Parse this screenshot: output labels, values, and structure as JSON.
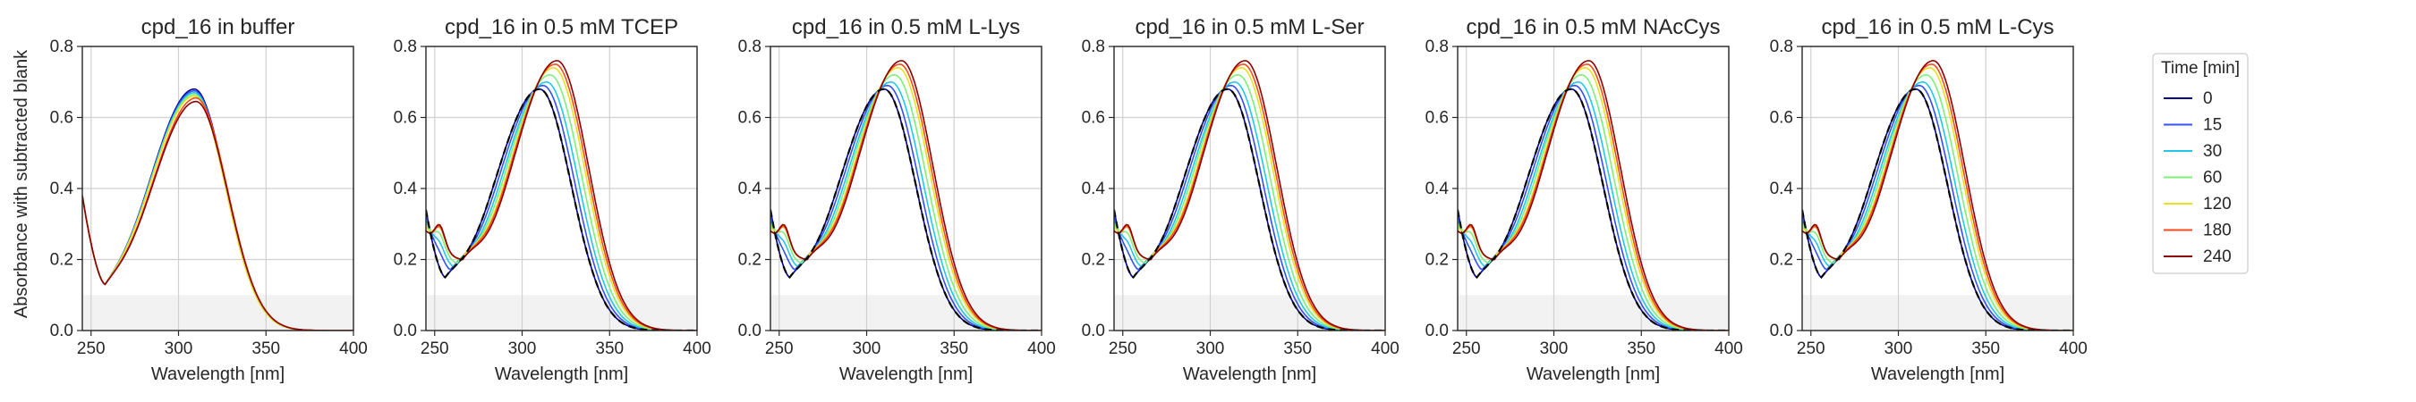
{
  "figure": {
    "y_axis_label": "Absorbance with subtracted blank",
    "x_axis_label": "Wavelength [nm]",
    "background_band": {
      "y_from": 0.0,
      "y_to": 0.1,
      "color": "#f2f2f2"
    },
    "colors": {
      "axes": "#262626",
      "grid": "#d0d0d0",
      "reference_curve": "#000000"
    }
  },
  "legend": {
    "title": "Time [min]",
    "placement": "right",
    "entries": [
      {
        "label": "0",
        "color": "#00008b"
      },
      {
        "label": "15",
        "color": "#3350ff"
      },
      {
        "label": "30",
        "color": "#20c8e8"
      },
      {
        "label": "60",
        "color": "#7cf07c"
      },
      {
        "label": "120",
        "color": "#e8e020"
      },
      {
        "label": "180",
        "color": "#ff4a1a"
      },
      {
        "label": "240",
        "color": "#8b0000"
      }
    ]
  },
  "chart_data": [
    {
      "type": "line",
      "title": "cpd_16 in buffer",
      "xlabel": "Wavelength [nm]",
      "ylabel": "Absorbance with subtracted blank",
      "xlim": [
        245,
        400
      ],
      "ylim": [
        0,
        0.8
      ],
      "xticks": [
        "250",
        "300",
        "350",
        "400"
      ],
      "yticks": [
        "0.0",
        "0.2",
        "0.4",
        "0.6",
        "0.8"
      ],
      "grid": true,
      "reference_baseline": false,
      "series": [
        {
          "name": "0",
          "model": {
            "min_wl": 258,
            "min_val": 0.13,
            "short_end": 0.38,
            "bump": 0.0,
            "peak_wl": 309,
            "peak_val": 0.68
          }
        },
        {
          "name": "15",
          "model": {
            "min_wl": 258,
            "min_val": 0.13,
            "short_end": 0.38,
            "bump": 0.0,
            "peak_wl": 309,
            "peak_val": 0.675
          }
        },
        {
          "name": "30",
          "model": {
            "min_wl": 258,
            "min_val": 0.13,
            "short_end": 0.38,
            "bump": 0.0,
            "peak_wl": 309,
            "peak_val": 0.67
          }
        },
        {
          "name": "60",
          "model": {
            "min_wl": 258,
            "min_val": 0.13,
            "short_end": 0.38,
            "bump": 0.0,
            "peak_wl": 309,
            "peak_val": 0.665
          }
        },
        {
          "name": "120",
          "model": {
            "min_wl": 258,
            "min_val": 0.13,
            "short_end": 0.38,
            "bump": 0.0,
            "peak_wl": 309,
            "peak_val": 0.66
          }
        },
        {
          "name": "180",
          "model": {
            "min_wl": 258,
            "min_val": 0.13,
            "short_end": 0.38,
            "bump": 0.0,
            "peak_wl": 310,
            "peak_val": 0.655
          }
        },
        {
          "name": "240",
          "model": {
            "min_wl": 258,
            "min_val": 0.13,
            "short_end": 0.38,
            "bump": 0.0,
            "peak_wl": 310,
            "peak_val": 0.645
          }
        }
      ]
    },
    {
      "type": "line",
      "title": "cpd_16 in 0.5 mM TCEP",
      "xlabel": "Wavelength [nm]",
      "ylabel": "Absorbance with subtracted blank",
      "xlim": [
        245,
        400
      ],
      "ylim": [
        0,
        0.8
      ],
      "xticks": [
        "250",
        "300",
        "350",
        "400"
      ],
      "yticks": [
        "0.0",
        "0.2",
        "0.4",
        "0.6",
        "0.8"
      ],
      "grid": true,
      "reference_baseline": true,
      "series": [
        {
          "name": "0",
          "model": {
            "min_wl": 256,
            "min_val": 0.15,
            "short_end": 0.34,
            "bump": 0.0,
            "peak_wl": 310,
            "peak_val": 0.68
          }
        },
        {
          "name": "15",
          "model": {
            "min_wl": 259,
            "min_val": 0.17,
            "short_end": 0.32,
            "bump": 0.012,
            "peak_wl": 312,
            "peak_val": 0.69
          }
        },
        {
          "name": "30",
          "model": {
            "min_wl": 261,
            "min_val": 0.18,
            "short_end": 0.31,
            "bump": 0.025,
            "peak_wl": 314,
            "peak_val": 0.7
          }
        },
        {
          "name": "60",
          "model": {
            "min_wl": 263,
            "min_val": 0.19,
            "short_end": 0.3,
            "bump": 0.04,
            "peak_wl": 316,
            "peak_val": 0.72
          }
        },
        {
          "name": "120",
          "model": {
            "min_wl": 265,
            "min_val": 0.2,
            "short_end": 0.29,
            "bump": 0.05,
            "peak_wl": 318,
            "peak_val": 0.74
          }
        },
        {
          "name": "180",
          "model": {
            "min_wl": 266,
            "min_val": 0.2,
            "short_end": 0.28,
            "bump": 0.055,
            "peak_wl": 319,
            "peak_val": 0.75
          }
        },
        {
          "name": "240",
          "model": {
            "min_wl": 266,
            "min_val": 0.2,
            "short_end": 0.28,
            "bump": 0.06,
            "peak_wl": 320,
            "peak_val": 0.76
          }
        }
      ]
    },
    {
      "type": "line",
      "title": "cpd_16 in 0.5 mM L-Lys",
      "xlabel": "Wavelength [nm]",
      "ylabel": "Absorbance with subtracted blank",
      "xlim": [
        245,
        400
      ],
      "ylim": [
        0,
        0.8
      ],
      "xticks": [
        "250",
        "300",
        "350",
        "400"
      ],
      "yticks": [
        "0.0",
        "0.2",
        "0.4",
        "0.6",
        "0.8"
      ],
      "grid": true,
      "reference_baseline": true,
      "series": [
        {
          "name": "0",
          "model": {
            "min_wl": 256,
            "min_val": 0.15,
            "short_end": 0.34,
            "bump": 0.0,
            "peak_wl": 310,
            "peak_val": 0.68
          }
        },
        {
          "name": "15",
          "model": {
            "min_wl": 259,
            "min_val": 0.17,
            "short_end": 0.32,
            "bump": 0.012,
            "peak_wl": 312,
            "peak_val": 0.69
          }
        },
        {
          "name": "30",
          "model": {
            "min_wl": 261,
            "min_val": 0.18,
            "short_end": 0.31,
            "bump": 0.025,
            "peak_wl": 314,
            "peak_val": 0.7
          }
        },
        {
          "name": "60",
          "model": {
            "min_wl": 263,
            "min_val": 0.19,
            "short_end": 0.3,
            "bump": 0.04,
            "peak_wl": 316,
            "peak_val": 0.72
          }
        },
        {
          "name": "120",
          "model": {
            "min_wl": 265,
            "min_val": 0.2,
            "short_end": 0.29,
            "bump": 0.05,
            "peak_wl": 318,
            "peak_val": 0.74
          }
        },
        {
          "name": "180",
          "model": {
            "min_wl": 266,
            "min_val": 0.2,
            "short_end": 0.28,
            "bump": 0.055,
            "peak_wl": 319,
            "peak_val": 0.75
          }
        },
        {
          "name": "240",
          "model": {
            "min_wl": 266,
            "min_val": 0.2,
            "short_end": 0.28,
            "bump": 0.06,
            "peak_wl": 320,
            "peak_val": 0.76
          }
        }
      ]
    },
    {
      "type": "line",
      "title": "cpd_16 in 0.5 mM L-Ser",
      "xlabel": "Wavelength [nm]",
      "ylabel": "Absorbance with subtracted blank",
      "xlim": [
        245,
        400
      ],
      "ylim": [
        0,
        0.8
      ],
      "xticks": [
        "250",
        "300",
        "350",
        "400"
      ],
      "yticks": [
        "0.0",
        "0.2",
        "0.4",
        "0.6",
        "0.8"
      ],
      "grid": true,
      "reference_baseline": true,
      "series": [
        {
          "name": "0",
          "model": {
            "min_wl": 256,
            "min_val": 0.15,
            "short_end": 0.34,
            "bump": 0.0,
            "peak_wl": 310,
            "peak_val": 0.68
          }
        },
        {
          "name": "15",
          "model": {
            "min_wl": 259,
            "min_val": 0.17,
            "short_end": 0.32,
            "bump": 0.012,
            "peak_wl": 312,
            "peak_val": 0.69
          }
        },
        {
          "name": "30",
          "model": {
            "min_wl": 261,
            "min_val": 0.18,
            "short_end": 0.31,
            "bump": 0.025,
            "peak_wl": 314,
            "peak_val": 0.7
          }
        },
        {
          "name": "60",
          "model": {
            "min_wl": 263,
            "min_val": 0.19,
            "short_end": 0.3,
            "bump": 0.04,
            "peak_wl": 316,
            "peak_val": 0.72
          }
        },
        {
          "name": "120",
          "model": {
            "min_wl": 265,
            "min_val": 0.2,
            "short_end": 0.29,
            "bump": 0.05,
            "peak_wl": 318,
            "peak_val": 0.74
          }
        },
        {
          "name": "180",
          "model": {
            "min_wl": 266,
            "min_val": 0.2,
            "short_end": 0.28,
            "bump": 0.055,
            "peak_wl": 319,
            "peak_val": 0.75
          }
        },
        {
          "name": "240",
          "model": {
            "min_wl": 266,
            "min_val": 0.2,
            "short_end": 0.28,
            "bump": 0.06,
            "peak_wl": 320,
            "peak_val": 0.76
          }
        }
      ]
    },
    {
      "type": "line",
      "title": "cpd_16 in 0.5 mM NAcCys",
      "xlabel": "Wavelength [nm]",
      "ylabel": "Absorbance with subtracted blank",
      "xlim": [
        245,
        400
      ],
      "ylim": [
        0,
        0.8
      ],
      "xticks": [
        "250",
        "300",
        "350",
        "400"
      ],
      "yticks": [
        "0.0",
        "0.2",
        "0.4",
        "0.6",
        "0.8"
      ],
      "grid": true,
      "reference_baseline": true,
      "series": [
        {
          "name": "0",
          "model": {
            "min_wl": 256,
            "min_val": 0.15,
            "short_end": 0.34,
            "bump": 0.0,
            "peak_wl": 310,
            "peak_val": 0.68
          }
        },
        {
          "name": "15",
          "model": {
            "min_wl": 259,
            "min_val": 0.17,
            "short_end": 0.32,
            "bump": 0.012,
            "peak_wl": 312,
            "peak_val": 0.69
          }
        },
        {
          "name": "30",
          "model": {
            "min_wl": 261,
            "min_val": 0.18,
            "short_end": 0.31,
            "bump": 0.025,
            "peak_wl": 314,
            "peak_val": 0.7
          }
        },
        {
          "name": "60",
          "model": {
            "min_wl": 263,
            "min_val": 0.19,
            "short_end": 0.3,
            "bump": 0.04,
            "peak_wl": 316,
            "peak_val": 0.72
          }
        },
        {
          "name": "120",
          "model": {
            "min_wl": 265,
            "min_val": 0.2,
            "short_end": 0.29,
            "bump": 0.05,
            "peak_wl": 318,
            "peak_val": 0.74
          }
        },
        {
          "name": "180",
          "model": {
            "min_wl": 266,
            "min_val": 0.2,
            "short_end": 0.28,
            "bump": 0.055,
            "peak_wl": 319,
            "peak_val": 0.75
          }
        },
        {
          "name": "240",
          "model": {
            "min_wl": 266,
            "min_val": 0.2,
            "short_end": 0.28,
            "bump": 0.06,
            "peak_wl": 320,
            "peak_val": 0.76
          }
        }
      ]
    },
    {
      "type": "line",
      "title": "cpd_16 in 0.5 mM L-Cys",
      "xlabel": "Wavelength [nm]",
      "ylabel": "Absorbance with subtracted blank",
      "xlim": [
        245,
        400
      ],
      "ylim": [
        0,
        0.8
      ],
      "xticks": [
        "250",
        "300",
        "350",
        "400"
      ],
      "yticks": [
        "0.0",
        "0.2",
        "0.4",
        "0.6",
        "0.8"
      ],
      "grid": true,
      "reference_baseline": true,
      "series": [
        {
          "name": "0",
          "model": {
            "min_wl": 256,
            "min_val": 0.15,
            "short_end": 0.34,
            "bump": 0.0,
            "peak_wl": 310,
            "peak_val": 0.68
          }
        },
        {
          "name": "15",
          "model": {
            "min_wl": 259,
            "min_val": 0.17,
            "short_end": 0.32,
            "bump": 0.012,
            "peak_wl": 312,
            "peak_val": 0.69
          }
        },
        {
          "name": "30",
          "model": {
            "min_wl": 261,
            "min_val": 0.18,
            "short_end": 0.31,
            "bump": 0.025,
            "peak_wl": 314,
            "peak_val": 0.7
          }
        },
        {
          "name": "60",
          "model": {
            "min_wl": 263,
            "min_val": 0.19,
            "short_end": 0.3,
            "bump": 0.04,
            "peak_wl": 316,
            "peak_val": 0.72
          }
        },
        {
          "name": "120",
          "model": {
            "min_wl": 265,
            "min_val": 0.2,
            "short_end": 0.29,
            "bump": 0.05,
            "peak_wl": 318,
            "peak_val": 0.74
          }
        },
        {
          "name": "180",
          "model": {
            "min_wl": 266,
            "min_val": 0.2,
            "short_end": 0.28,
            "bump": 0.055,
            "peak_wl": 319,
            "peak_val": 0.75
          }
        },
        {
          "name": "240",
          "model": {
            "min_wl": 266,
            "min_val": 0.2,
            "short_end": 0.28,
            "bump": 0.06,
            "peak_wl": 320,
            "peak_val": 0.76
          }
        }
      ]
    }
  ]
}
